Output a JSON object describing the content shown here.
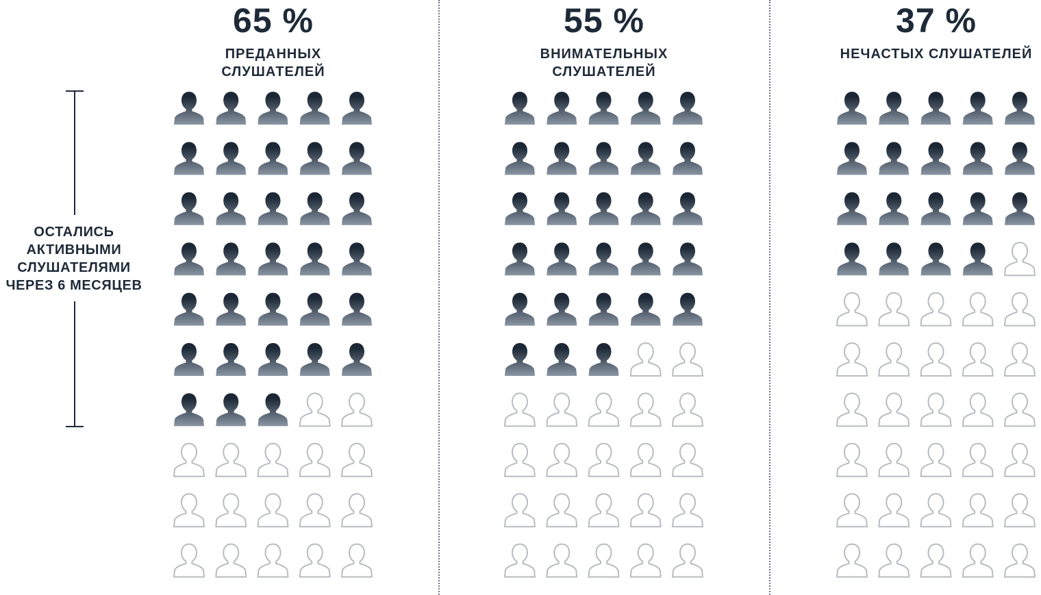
{
  "chart_data": {
    "type": "pictogram",
    "icon": "person-icon",
    "grid": {
      "rows": 10,
      "cols": 5,
      "total": 50
    },
    "colors": {
      "filled_top": "#1c2735",
      "filled_bottom": "#8a96a3",
      "empty_stroke": "#b8bcc0",
      "text": "#1e2a38"
    },
    "groups": [
      {
        "percent_label": "65 %",
        "value": 65,
        "filled_icons": 33,
        "caption_lines": [
          "ПРЕДАННЫХ",
          "СЛУШАТЕЛЕЙ"
        ]
      },
      {
        "percent_label": "55 %",
        "value": 55,
        "filled_icons": 28,
        "caption_lines": [
          "ВНИМАТЕЛЬНЫХ",
          "СЛУШАТЕЛЕЙ"
        ]
      },
      {
        "percent_label": "37 %",
        "value": 37,
        "filled_icons": 19,
        "caption_lines": [
          "НЕЧАСТЫХ СЛУШАТЕЛЕЙ"
        ]
      }
    ],
    "annotation": {
      "lines": [
        "ОСТАЛИСЬ",
        "АКТИВНЫМИ",
        "СЛУШАТЕЛЯМИ",
        "ЧЕРЕЗ 6 МЕСЯЦЕВ"
      ],
      "spans_rows": 7
    }
  }
}
